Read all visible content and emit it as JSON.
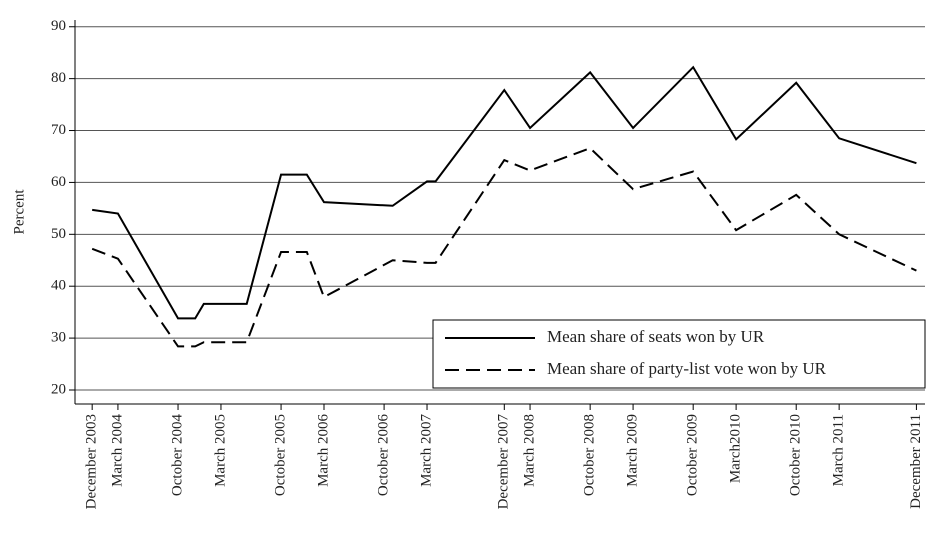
{
  "chart_data": {
    "type": "line",
    "x": [
      "2003-12",
      "2004-03",
      "2004-10",
      "2004-12",
      "2005-01",
      "2005-06",
      "2005-10",
      "2006-01",
      "2006-03",
      "2006-11",
      "2007-03",
      "2007-04",
      "2007-12",
      "2008-03",
      "2008-10",
      "2009-03",
      "2009-10",
      "2010-03",
      "2010-10",
      "2011-03",
      "2011-12"
    ],
    "series": [
      {
        "name": "Mean share of seats won by UR",
        "color": "#000000",
        "linestyle": "solid",
        "values": [
          54.7,
          54,
          33.8,
          33.8,
          36.6,
          36.6,
          61.5,
          61.5,
          56.2,
          55.5,
          60.2,
          60.2,
          77.8,
          70.5,
          81.2,
          70.5,
          82.2,
          68.3,
          79.2,
          68.5,
          63.7
        ]
      },
      {
        "name": "Mean share of party-list vote won by UR",
        "color": "#000000",
        "linestyle": "dashed",
        "values": [
          47.2,
          45.3,
          28.4,
          28.4,
          29.2,
          29.2,
          46.6,
          46.6,
          37.9,
          45,
          44.5,
          44.5,
          64.3,
          62.3,
          66.6,
          58.7,
          62.1,
          50.8,
          57.6,
          50,
          43
        ]
      }
    ],
    "y_label": "Percent",
    "xlim": [
      "2003-10",
      "2012-01"
    ],
    "xticks": [
      {
        "value": "2003-12",
        "label": "December 2003"
      },
      {
        "value": "2004-03",
        "label": "March 2004"
      },
      {
        "value": "2004-10",
        "label": "October 2004"
      },
      {
        "value": "2005-03",
        "label": "March 2005"
      },
      {
        "value": "2005-10",
        "label": "October 2005"
      },
      {
        "value": "2006-03",
        "label": "March 2006"
      },
      {
        "value": "2006-10",
        "label": "October 2006"
      },
      {
        "value": "2007-03",
        "label": "March 2007"
      },
      {
        "value": "2007-12",
        "label": "December 2007"
      },
      {
        "value": "2008-03",
        "label": "March 2008"
      },
      {
        "value": "2008-10",
        "label": "October 2008"
      },
      {
        "value": "2009-03",
        "label": "March 2009"
      },
      {
        "value": "2009-10",
        "label": "October 2009"
      },
      {
        "value": "2010-03",
        "label": "March2010"
      },
      {
        "value": "2010-10",
        "label": "October 2010"
      },
      {
        "value": "2011-03",
        "label": "March 2011"
      },
      {
        "value": "2011-12",
        "label": "December 2011"
      }
    ],
    "ylim": [
      17.3,
      91.3
    ],
    "yticks": [
      20,
      30,
      40,
      50,
      60,
      70,
      80,
      90
    ],
    "grid": true,
    "legend": "lower right"
  }
}
